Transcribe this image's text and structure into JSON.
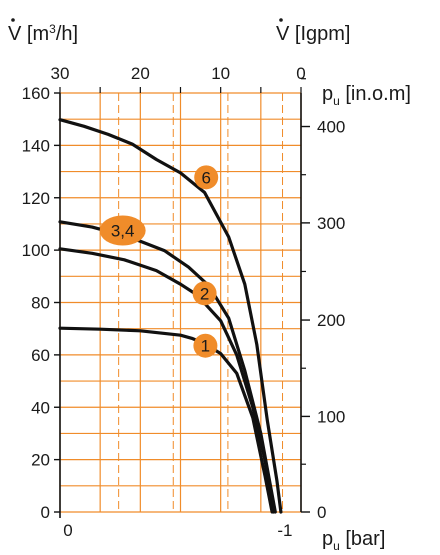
{
  "chart_data": {
    "type": "line",
    "grid": true,
    "colors": {
      "grid": "#f08c2a",
      "curve": "#111111",
      "badge": "#f08c2a",
      "text": "#1a1a1a",
      "axis": "#111111"
    },
    "axes": {
      "top_m3h": {
        "label_prefix": "V",
        "label_unit": "[m",
        "label_sup": "3",
        "label_suffix": "/h]",
        "range": [
          30,
          0
        ],
        "ticks": [
          {
            "value": 30,
            "label": "30"
          },
          {
            "value": 20,
            "label": "20"
          },
          {
            "value": 10,
            "label": "10"
          },
          {
            "value": 0,
            "label": "0"
          }
        ]
      },
      "top_igpm": {
        "label_prefix": "V",
        "label_unit": "[Igpm]"
      },
      "left_y": {
        "range": [
          0,
          160
        ],
        "ticks": [
          {
            "value": 0,
            "label": "0"
          },
          {
            "value": 20,
            "label": "20"
          },
          {
            "value": 40,
            "label": "40"
          },
          {
            "value": 60,
            "label": "60"
          },
          {
            "value": 80,
            "label": "80"
          },
          {
            "value": 100,
            "label": "100"
          },
          {
            "value": 120,
            "label": "120"
          },
          {
            "value": 140,
            "label": "140"
          },
          {
            "value": 160,
            "label": "160"
          }
        ]
      },
      "right_y": {
        "label_prefix": "p",
        "label_sub": "u",
        "label_suffix": " [in.o.m]",
        "range": [
          0,
          160
        ],
        "ticks": [
          {
            "value": 0,
            "label": "0"
          },
          {
            "value": 36.5,
            "label": "100"
          },
          {
            "value": 73.3,
            "label": "200"
          },
          {
            "value": 110.4,
            "label": "300"
          },
          {
            "value": 147.2,
            "label": "400"
          }
        ]
      },
      "bottom_bar": {
        "label_prefix": "p",
        "label_sub": "u",
        "label_suffix": " [bar]",
        "ticks": [
          {
            "value": 30,
            "label": "0"
          },
          {
            "value": 2.5,
            "label": "-1"
          }
        ]
      }
    },
    "series": [
      {
        "badge": "1",
        "badge_at": [
          11.9,
          63.5
        ],
        "badge_rx": 12,
        "badge_ry": 12,
        "points": [
          [
            30,
            70.2
          ],
          [
            25,
            69.8
          ],
          [
            20,
            69.2
          ],
          [
            15,
            67.5
          ],
          [
            13.5,
            66.2
          ],
          [
            12,
            64.3
          ],
          [
            10,
            60.5
          ],
          [
            8,
            53
          ],
          [
            6,
            36
          ],
          [
            4.5,
            14
          ],
          [
            3.6,
            0
          ]
        ]
      },
      {
        "badge": "2",
        "badge_at": [
          12.0,
          83.5
        ],
        "badge_rx": 12,
        "badge_ry": 12,
        "points": [
          [
            30,
            100.5
          ],
          [
            26,
            98.8
          ],
          [
            22,
            96.3
          ],
          [
            18,
            92.2
          ],
          [
            15,
            87
          ],
          [
            13,
            83
          ],
          [
            10,
            73
          ],
          [
            8,
            60
          ],
          [
            6,
            40
          ],
          [
            4.5,
            20
          ],
          [
            3.4,
            0
          ]
        ]
      },
      {
        "badge": "3,4",
        "badge_at": [
          22.2,
          107.5
        ],
        "badge_rx": 23,
        "badge_ry": 15,
        "points": [
          [
            30,
            110.8
          ],
          [
            26,
            108.8
          ],
          [
            22,
            105.5
          ],
          [
            20,
            103.4
          ],
          [
            17,
            99.8
          ],
          [
            14,
            93.5
          ],
          [
            11.5,
            86.5
          ],
          [
            9,
            74
          ],
          [
            7,
            54
          ],
          [
            5,
            30
          ],
          [
            3.2,
            0
          ]
        ]
      },
      {
        "badge": "6",
        "badge_at": [
          11.8,
          127.8
        ],
        "badge_rx": 12,
        "badge_ry": 12,
        "points": [
          [
            30,
            149.8
          ],
          [
            27,
            147.3
          ],
          [
            24,
            144.2
          ],
          [
            21,
            140.5
          ],
          [
            18,
            134.6
          ],
          [
            15,
            129.5
          ],
          [
            12,
            122
          ],
          [
            9,
            105
          ],
          [
            7,
            87
          ],
          [
            5.5,
            64
          ],
          [
            4.2,
            35
          ],
          [
            3.0,
            12
          ],
          [
            2.5,
            0
          ]
        ]
      }
    ]
  }
}
